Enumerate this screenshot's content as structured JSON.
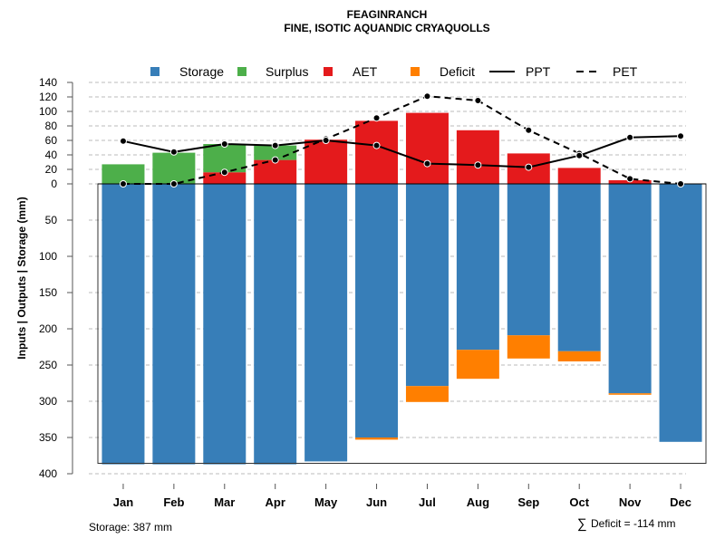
{
  "chart_data": {
    "type": "bar",
    "title": "FEAGINRANCH",
    "subtitle": "FINE, ISOTIC AQUANDIC CRYAQUOLLS",
    "ylabel": "Inputs | Outputs | Storage    (mm)",
    "categories": [
      "Jan",
      "Feb",
      "Mar",
      "Apr",
      "May",
      "Jun",
      "Jul",
      "Aug",
      "Sep",
      "Oct",
      "Nov",
      "Dec"
    ],
    "ylim_positive": [
      0,
      140
    ],
    "ylim_negative": [
      0,
      400
    ],
    "yticks_positive": [
      "0",
      "20",
      "40",
      "60",
      "80",
      "100",
      "120",
      "140"
    ],
    "yticks_negative": [
      "50",
      "100",
      "150",
      "200",
      "250",
      "300",
      "350",
      "400"
    ],
    "legend": [
      "Storage",
      "Surplus",
      "AET",
      "Deficit",
      "PPT",
      "PET"
    ],
    "legend_placement": "top",
    "colors": {
      "Storage": "#377EB8",
      "Surplus": "#4DAF4A",
      "AET": "#E41A1C",
      "Deficit": "#FF7F00",
      "PPT": "#000000",
      "PET": "#000000"
    },
    "series": [
      {
        "name": "AET",
        "values": [
          0,
          0,
          16,
          33,
          61,
          87,
          98,
          74,
          42,
          22,
          5,
          0
        ]
      },
      {
        "name": "Surplus",
        "values": [
          27,
          43,
          39,
          20,
          0,
          0,
          0,
          0,
          0,
          0,
          0,
          0
        ]
      },
      {
        "name": "Storage",
        "values": [
          387,
          387,
          387,
          387,
          383,
          350,
          279,
          229,
          209,
          231,
          289,
          356
        ]
      },
      {
        "name": "Deficit",
        "values": [
          0,
          0,
          0,
          0,
          0,
          3,
          22,
          40,
          32,
          14,
          2,
          0
        ]
      },
      {
        "name": "PPT",
        "values": [
          59,
          44,
          55,
          53,
          60,
          53,
          28,
          26,
          23,
          39,
          64,
          66
        ]
      },
      {
        "name": "PET",
        "values": [
          0,
          0,
          16,
          33,
          62,
          91,
          121,
          115,
          74,
          42,
          7,
          0
        ]
      }
    ],
    "grid": true,
    "annotations": {
      "storage": "Storage: 387 mm",
      "deficit_symbol": "∑",
      "deficit": "Deficit = -114 mm"
    }
  }
}
